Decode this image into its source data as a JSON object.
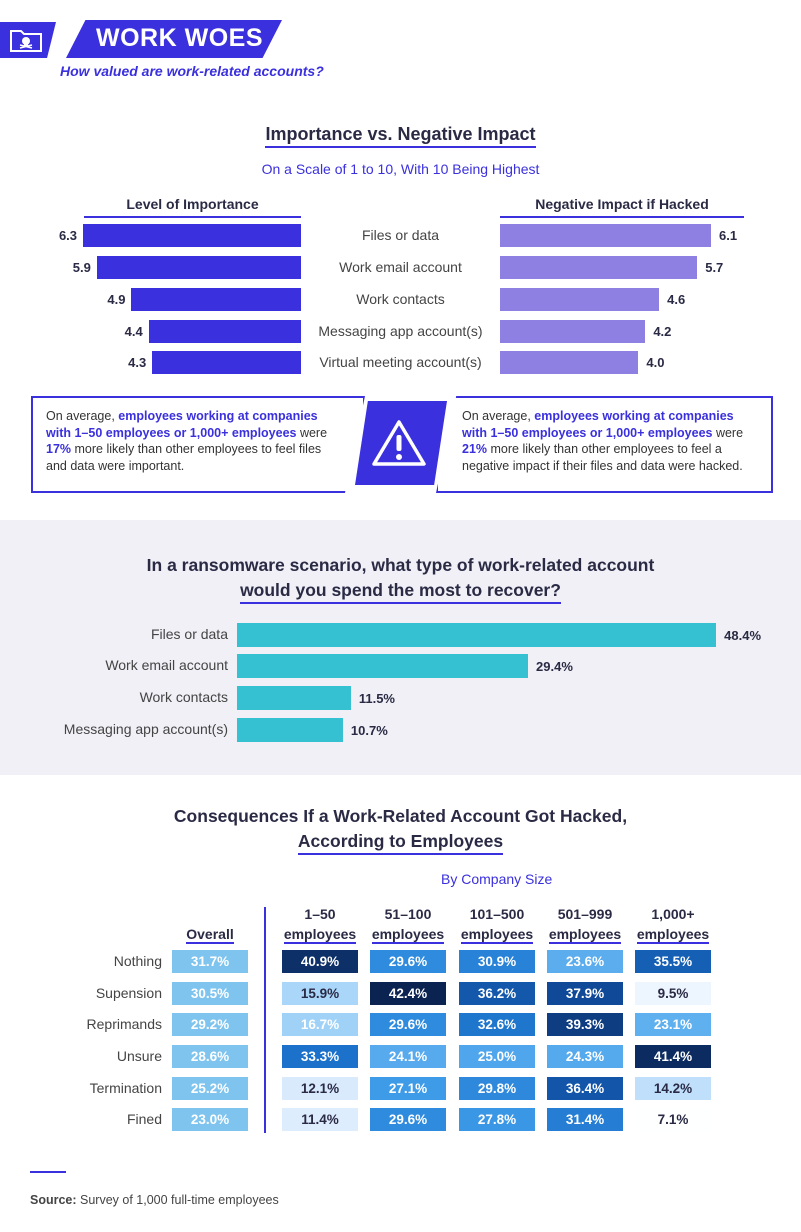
{
  "header": {
    "title": "WORK WOES",
    "subtitle": "How valued are work-related accounts?",
    "icon": "folder-skull-icon"
  },
  "section1": {
    "title": "Importance vs. Negative Impact",
    "subtitle": "On a Scale of 1 to 10, With 10 Being Highest",
    "left_header": "Level of Importance",
    "right_header": "Negative Impact if Hacked",
    "callout_left": {
      "p1": "On average, ",
      "b1": "employees working at companies with 1–50 employees or 1,000+ employees",
      "p2": " were ",
      "b2": "17%",
      "p3": " more likely than other employees to feel files and data were important."
    },
    "callout_right": {
      "p1": "On average, ",
      "b1": "employees working at companies with 1–50 employees or 1,000+ employees",
      "p2": " were ",
      "b2": "21%",
      "p3": " more likely than other employees to feel a negative impact if their files and data were hacked."
    },
    "warning_icon": "warning-triangle-icon"
  },
  "section2": {
    "title_line1": "In a ransomware scenario, what type of work-related account",
    "title_line2": "would you spend the most to recover?"
  },
  "section3": {
    "title_line1": "Consequences If a Work-Related Account Got Hacked,",
    "title_line2": "According to Employees",
    "by_company": "By Company Size",
    "overall_header": "Overall",
    "column_headers": [
      {
        "l1": "1–50",
        "l2": "employees"
      },
      {
        "l1": "51–100",
        "l2": "employees"
      },
      {
        "l1": "101–500",
        "l2": "employees"
      },
      {
        "l1": "501–999",
        "l2": "employees"
      },
      {
        "l1": "1,000+",
        "l2": "employees"
      }
    ]
  },
  "source": {
    "label": "Source:",
    "text": " Survey of 1,000 full-time employees"
  },
  "colors": {
    "primary": "#3a30dd",
    "secondary": "#8e80e3",
    "teal": "#35c1d1",
    "overall_cell": "#7fc4ee"
  },
  "chart_data": [
    {
      "type": "bar",
      "title": "Importance vs. Negative Impact",
      "subtitle": "On a Scale of 1 to 10, With 10 Being Highest",
      "categories": [
        "Files or data",
        "Work email account",
        "Work contacts",
        "Messaging app account(s)",
        "Virtual meeting account(s)"
      ],
      "series": [
        {
          "name": "Level of Importance",
          "values": [
            6.3,
            5.9,
            4.9,
            4.4,
            4.3
          ],
          "labels": [
            "6.3",
            "5.9",
            "4.9",
            "4.4",
            "4.3"
          ]
        },
        {
          "name": "Negative Impact if Hacked",
          "values": [
            6.1,
            5.7,
            4.6,
            4.2,
            4.0
          ],
          "labels": [
            "6.1",
            "5.7",
            "4.6",
            "4.2",
            "4.0"
          ]
        }
      ],
      "xlim": [
        0,
        10
      ]
    },
    {
      "type": "bar",
      "title": "In a ransomware scenario, what type of work-related account would you spend the most to recover?",
      "categories": [
        "Files or data",
        "Work email account",
        "Work contacts",
        "Messaging app account(s)"
      ],
      "values": [
        48.4,
        29.4,
        11.5,
        10.7
      ],
      "labels": [
        "48.4%",
        "29.4%",
        "11.5%",
        "10.7%"
      ],
      "xlim": [
        0,
        50
      ]
    },
    {
      "type": "heatmap",
      "title": "Consequences If a Work-Related Account Got Hacked, According to Employees",
      "rows": [
        "Nothing",
        "Supension",
        "Reprimands",
        "Unsure",
        "Termination",
        "Fined"
      ],
      "columns": [
        "Overall",
        "1–50 employees",
        "51–100 employees",
        "101–500 employees",
        "501–999 employees",
        "1,000+ employees"
      ],
      "values": [
        [
          31.7,
          40.9,
          29.6,
          30.9,
          23.6,
          35.5
        ],
        [
          30.5,
          15.9,
          42.4,
          36.2,
          37.9,
          9.5
        ],
        [
          29.2,
          16.7,
          29.6,
          32.6,
          39.3,
          23.1
        ],
        [
          28.6,
          33.3,
          24.1,
          25.0,
          24.3,
          41.4
        ],
        [
          25.2,
          12.1,
          27.1,
          29.8,
          36.4,
          14.2
        ],
        [
          23.0,
          11.4,
          29.6,
          27.8,
          31.4,
          7.1
        ]
      ],
      "labels": [
        [
          "31.7%",
          "40.9%",
          "29.6%",
          "30.9%",
          "23.6%",
          "35.5%"
        ],
        [
          "30.5%",
          "15.9%",
          "42.4%",
          "36.2%",
          "37.9%",
          "9.5%"
        ],
        [
          "29.2%",
          "16.7%",
          "29.6%",
          "32.6%",
          "39.3%",
          "23.1%"
        ],
        [
          "28.6%",
          "33.3%",
          "24.1%",
          "25.0%",
          "24.3%",
          "41.4%"
        ],
        [
          "25.2%",
          "12.1%",
          "27.1%",
          "29.8%",
          "36.4%",
          "14.2%"
        ],
        [
          "23.0%",
          "11.4%",
          "29.6%",
          "27.8%",
          "31.4%",
          "7.1%"
        ]
      ]
    }
  ]
}
